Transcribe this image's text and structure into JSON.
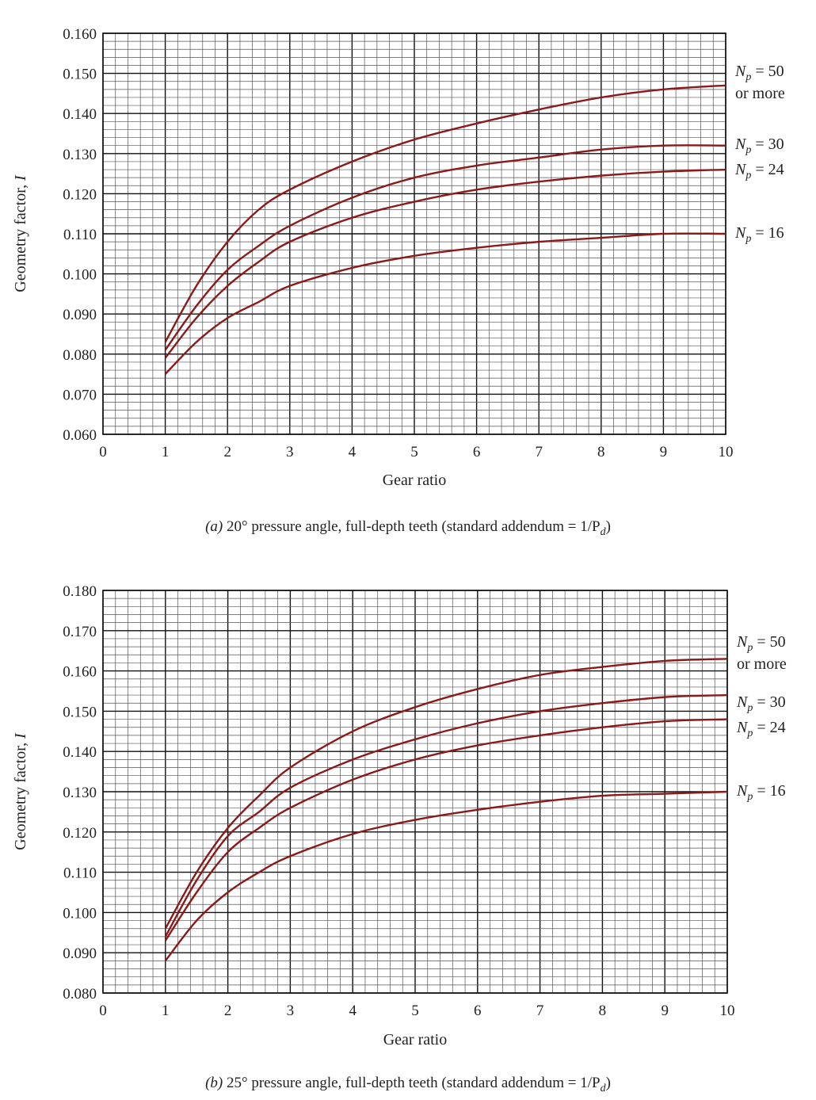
{
  "chart_data": [
    {
      "type": "line",
      "caption_id": "(a)",
      "caption_text": " 20° pressure angle, full-depth teeth (standard addendum = 1/P",
      "caption_sub": "d",
      "caption_close": ")",
      "xlabel": "Gear ratio",
      "ylabel": "Geometry factor, I",
      "xlim": [
        0,
        10
      ],
      "ylim": [
        0.06,
        0.16
      ],
      "x_ticks": [
        "0",
        "1",
        "2",
        "3",
        "4",
        "5",
        "6",
        "7",
        "8",
        "9",
        "10"
      ],
      "y_ticks": [
        "0.060",
        "0.070",
        "0.080",
        "0.090",
        "0.100",
        "0.110",
        "0.120",
        "0.130",
        "0.140",
        "0.150",
        "0.160"
      ],
      "grid": true,
      "series": [
        {
          "label_pre": "N",
          "label_sub": "p",
          "label_post": " = 50",
          "label_line2": "or more",
          "x": [
            1,
            1.5,
            2,
            2.5,
            3,
            4,
            5,
            6,
            7,
            8,
            9,
            10
          ],
          "y": [
            0.083,
            0.097,
            0.108,
            0.116,
            0.121,
            0.128,
            0.1335,
            0.1375,
            0.141,
            0.144,
            0.146,
            0.147
          ]
        },
        {
          "label_pre": "N",
          "label_sub": "p",
          "label_post": " = 30",
          "label_line2": "",
          "x": [
            1,
            1.5,
            2,
            2.5,
            3,
            4,
            5,
            6,
            7,
            8,
            9,
            10
          ],
          "y": [
            0.081,
            0.092,
            0.101,
            0.107,
            0.112,
            0.119,
            0.124,
            0.127,
            0.129,
            0.131,
            0.132,
            0.132
          ]
        },
        {
          "label_pre": "N",
          "label_sub": "p",
          "label_post": " = 24",
          "label_line2": "",
          "x": [
            1,
            1.5,
            2,
            2.5,
            3,
            4,
            5,
            6,
            7,
            8,
            9,
            10
          ],
          "y": [
            0.079,
            0.089,
            0.097,
            0.103,
            0.108,
            0.114,
            0.118,
            0.121,
            0.123,
            0.1245,
            0.1255,
            0.126
          ]
        },
        {
          "label_pre": "N",
          "label_sub": "p",
          "label_post": " = 16",
          "label_line2": "",
          "x": [
            1,
            1.5,
            2,
            2.5,
            3,
            4,
            5,
            6,
            7,
            8,
            9,
            10
          ],
          "y": [
            0.075,
            0.083,
            0.089,
            0.093,
            0.097,
            0.1015,
            0.1045,
            0.1065,
            0.108,
            0.109,
            0.11,
            0.11
          ]
        }
      ]
    },
    {
      "type": "line",
      "caption_id": "(b)",
      "caption_text": " 25° pressure angle, full-depth teeth (standard addendum = 1/P",
      "caption_sub": "d",
      "caption_close": ")",
      "xlabel": "Gear ratio",
      "ylabel": "Geometry factor, I",
      "xlim": [
        0,
        10
      ],
      "ylim": [
        0.08,
        0.18
      ],
      "x_ticks": [
        "0",
        "1",
        "2",
        "3",
        "4",
        "5",
        "6",
        "7",
        "8",
        "9",
        "10"
      ],
      "y_ticks": [
        "0.080",
        "0.090",
        "0.100",
        "0.110",
        "0.120",
        "0.130",
        "0.140",
        "0.150",
        "0.160",
        "0.170",
        "0.180"
      ],
      "grid": true,
      "series": [
        {
          "label_pre": "N",
          "label_sub": "p",
          "label_post": " = 50",
          "label_line2": "or more",
          "x": [
            1,
            1.5,
            2,
            2.5,
            3,
            4,
            5,
            6,
            7,
            8,
            9,
            10
          ],
          "y": [
            0.096,
            0.11,
            0.121,
            0.129,
            0.136,
            0.145,
            0.151,
            0.1555,
            0.159,
            0.161,
            0.1625,
            0.163
          ]
        },
        {
          "label_pre": "N",
          "label_sub": "p",
          "label_post": " = 30",
          "label_line2": "",
          "x": [
            1,
            1.5,
            2,
            2.5,
            3,
            4,
            5,
            6,
            7,
            8,
            9,
            10
          ],
          "y": [
            0.094,
            0.108,
            0.119,
            0.125,
            0.131,
            0.138,
            0.143,
            0.147,
            0.15,
            0.152,
            0.1535,
            0.154
          ]
        },
        {
          "label_pre": "N",
          "label_sub": "p",
          "label_post": " = 24",
          "label_line2": "",
          "x": [
            1,
            1.5,
            2,
            2.5,
            3,
            4,
            5,
            6,
            7,
            8,
            9,
            10
          ],
          "y": [
            0.093,
            0.105,
            0.115,
            0.121,
            0.126,
            0.133,
            0.138,
            0.1415,
            0.144,
            0.146,
            0.1475,
            0.148
          ]
        },
        {
          "label_pre": "N",
          "label_sub": "p",
          "label_post": " = 16",
          "label_line2": "",
          "x": [
            1,
            1.5,
            2,
            2.5,
            3,
            4,
            5,
            6,
            7,
            8,
            9,
            10
          ],
          "y": [
            0.088,
            0.098,
            0.105,
            0.11,
            0.114,
            0.1195,
            0.123,
            0.1255,
            0.1275,
            0.129,
            0.1295,
            0.13
          ]
        }
      ]
    }
  ]
}
